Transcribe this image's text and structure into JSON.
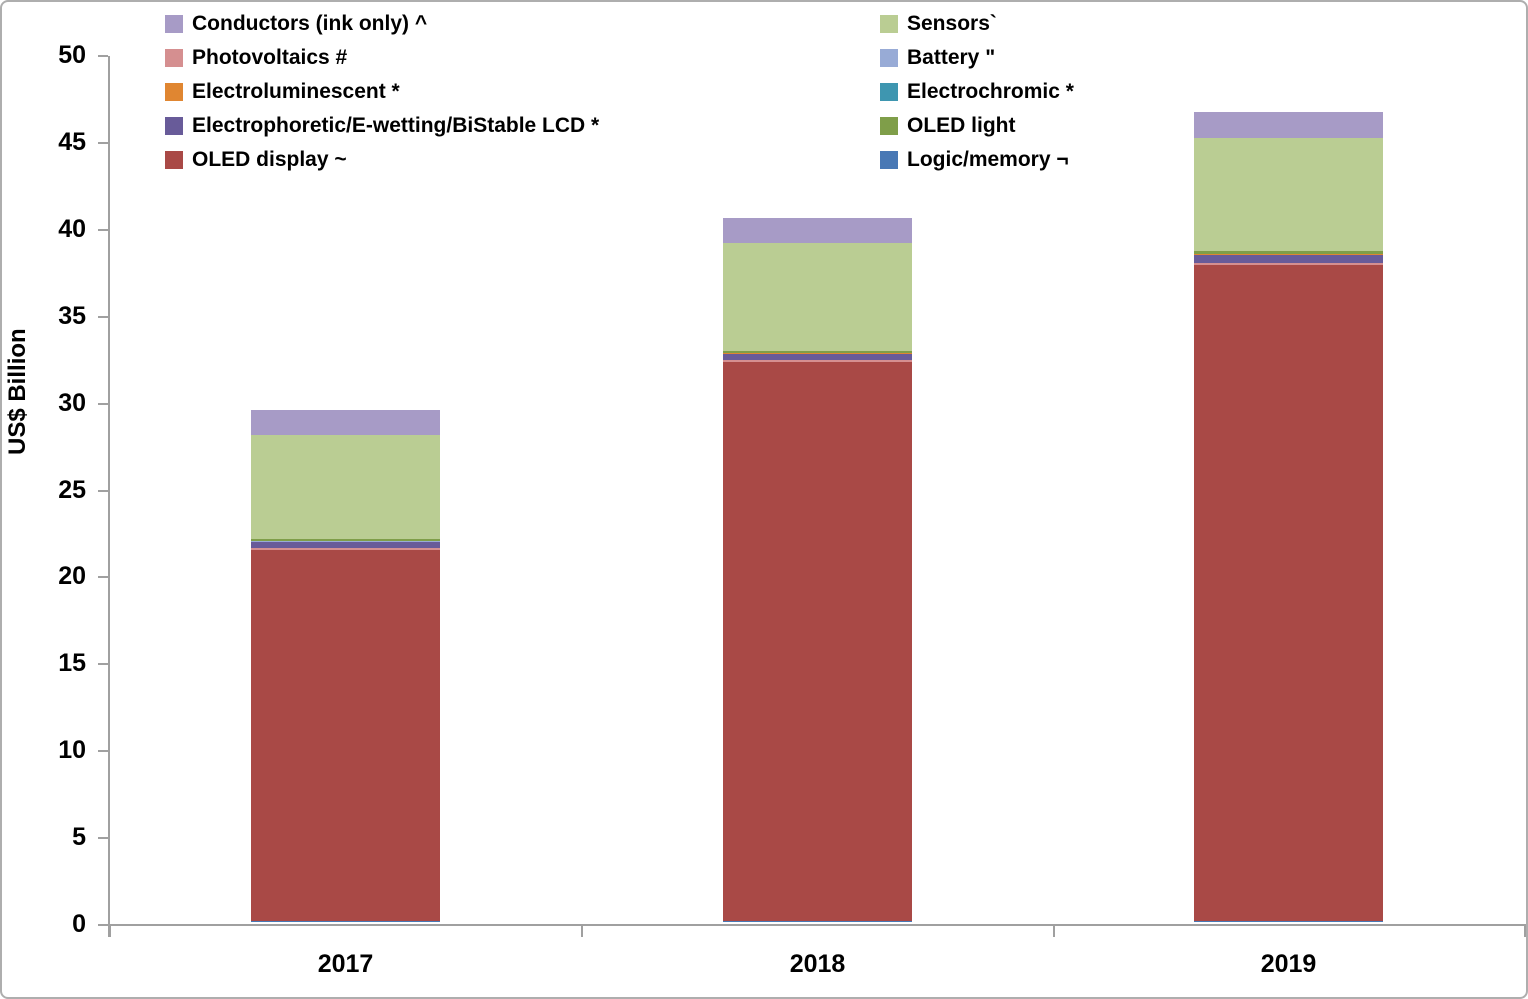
{
  "chart_data": {
    "type": "bar",
    "stacked": true,
    "title": "",
    "xlabel": "",
    "ylabel": "US$ Billion",
    "ylim": [
      0,
      50
    ],
    "ytick_interval": 5,
    "grid": false,
    "legend_position": "top, two columns",
    "categories": [
      "2017",
      "2018",
      "2019"
    ],
    "series": [
      {
        "id": "logic_memory",
        "name": "Logic/memory ¬",
        "color": "#4878b5",
        "values": [
          0.02,
          0.02,
          0.02
        ]
      },
      {
        "id": "oled_display",
        "name": "OLED display ~",
        "color": "#a94946",
        "values": [
          21.35,
          32.15,
          37.7
        ]
      },
      {
        "id": "photovoltaics",
        "name": "Photovoltaics #",
        "color": "#d58f90",
        "values": [
          0.1,
          0.1,
          0.15
        ]
      },
      {
        "id": "electrophoretic",
        "name": "Electrophoretic/E-wetting/BiStable LCD *",
        "color": "#685b99",
        "values": [
          0.35,
          0.35,
          0.45
        ]
      },
      {
        "id": "battery",
        "name": "Battery \"",
        "color": "#98abd6",
        "values": [
          0.02,
          0.02,
          0.02
        ]
      },
      {
        "id": "electroluminescent",
        "name": "Electroluminescent *",
        "color": "#e08631",
        "values": [
          0.02,
          0.02,
          0.02
        ]
      },
      {
        "id": "electrochromic",
        "name": "Electrochromic *",
        "color": "#3e96b0",
        "values": [
          0.02,
          0.02,
          0.02
        ]
      },
      {
        "id": "oled_light",
        "name": "OLED light",
        "color": "#7f9e49",
        "values": [
          0.1,
          0.1,
          0.15
        ]
      },
      {
        "id": "sensors",
        "name": "Sensors`",
        "color": "#bacd93",
        "values": [
          6.0,
          6.25,
          6.55
        ]
      },
      {
        "id": "conductors",
        "name": "Conductors (ink only) ^",
        "color": "#a79bc6",
        "values": [
          1.4,
          1.45,
          1.5
        ]
      }
    ],
    "bar_totals": [
      29.3,
      40.5,
      46.6
    ],
    "legend_columns": {
      "left": [
        "conductors",
        "photovoltaics",
        "electroluminescent",
        "electrophoretic",
        "oled_display"
      ],
      "right": [
        "sensors",
        "battery",
        "electrochromic",
        "oled_light",
        "logic_memory"
      ]
    },
    "axis_color": "#a0a0a0"
  }
}
